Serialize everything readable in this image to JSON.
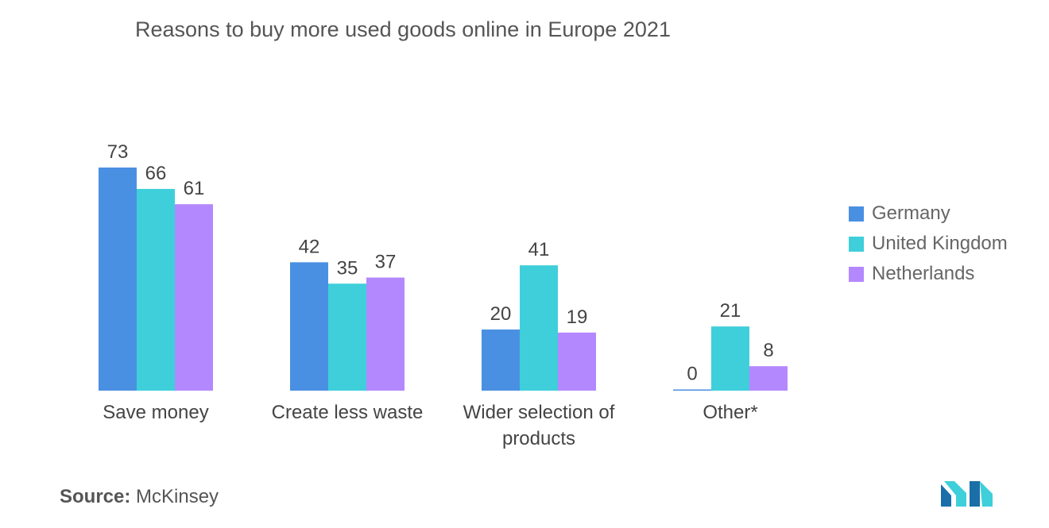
{
  "title": "Reasons to buy more used goods online in Europe 2021",
  "source": {
    "label": "Source:",
    "value": "McKinsey"
  },
  "colors": {
    "Germany": "#4a90e2",
    "United Kingdom": "#3ecfda",
    "Netherlands": "#b388ff",
    "logo_dark": "#1b6fa8",
    "logo_light": "#3ecfda"
  },
  "chart_data": {
    "type": "bar",
    "title": "Reasons to buy more used goods online in Europe 2021",
    "categories": [
      [
        "Save money"
      ],
      [
        "Create less waste"
      ],
      [
        "Wider selection of",
        "products"
      ],
      [
        "Other*"
      ]
    ],
    "series": [
      {
        "name": "Germany",
        "values": [
          73,
          42,
          20,
          0
        ]
      },
      {
        "name": "United Kingdom",
        "values": [
          66,
          35,
          41,
          21
        ]
      },
      {
        "name": "Netherlands",
        "values": [
          61,
          37,
          19,
          8
        ]
      }
    ],
    "ylim": [
      0,
      73
    ],
    "grid": false,
    "legend": "right"
  }
}
